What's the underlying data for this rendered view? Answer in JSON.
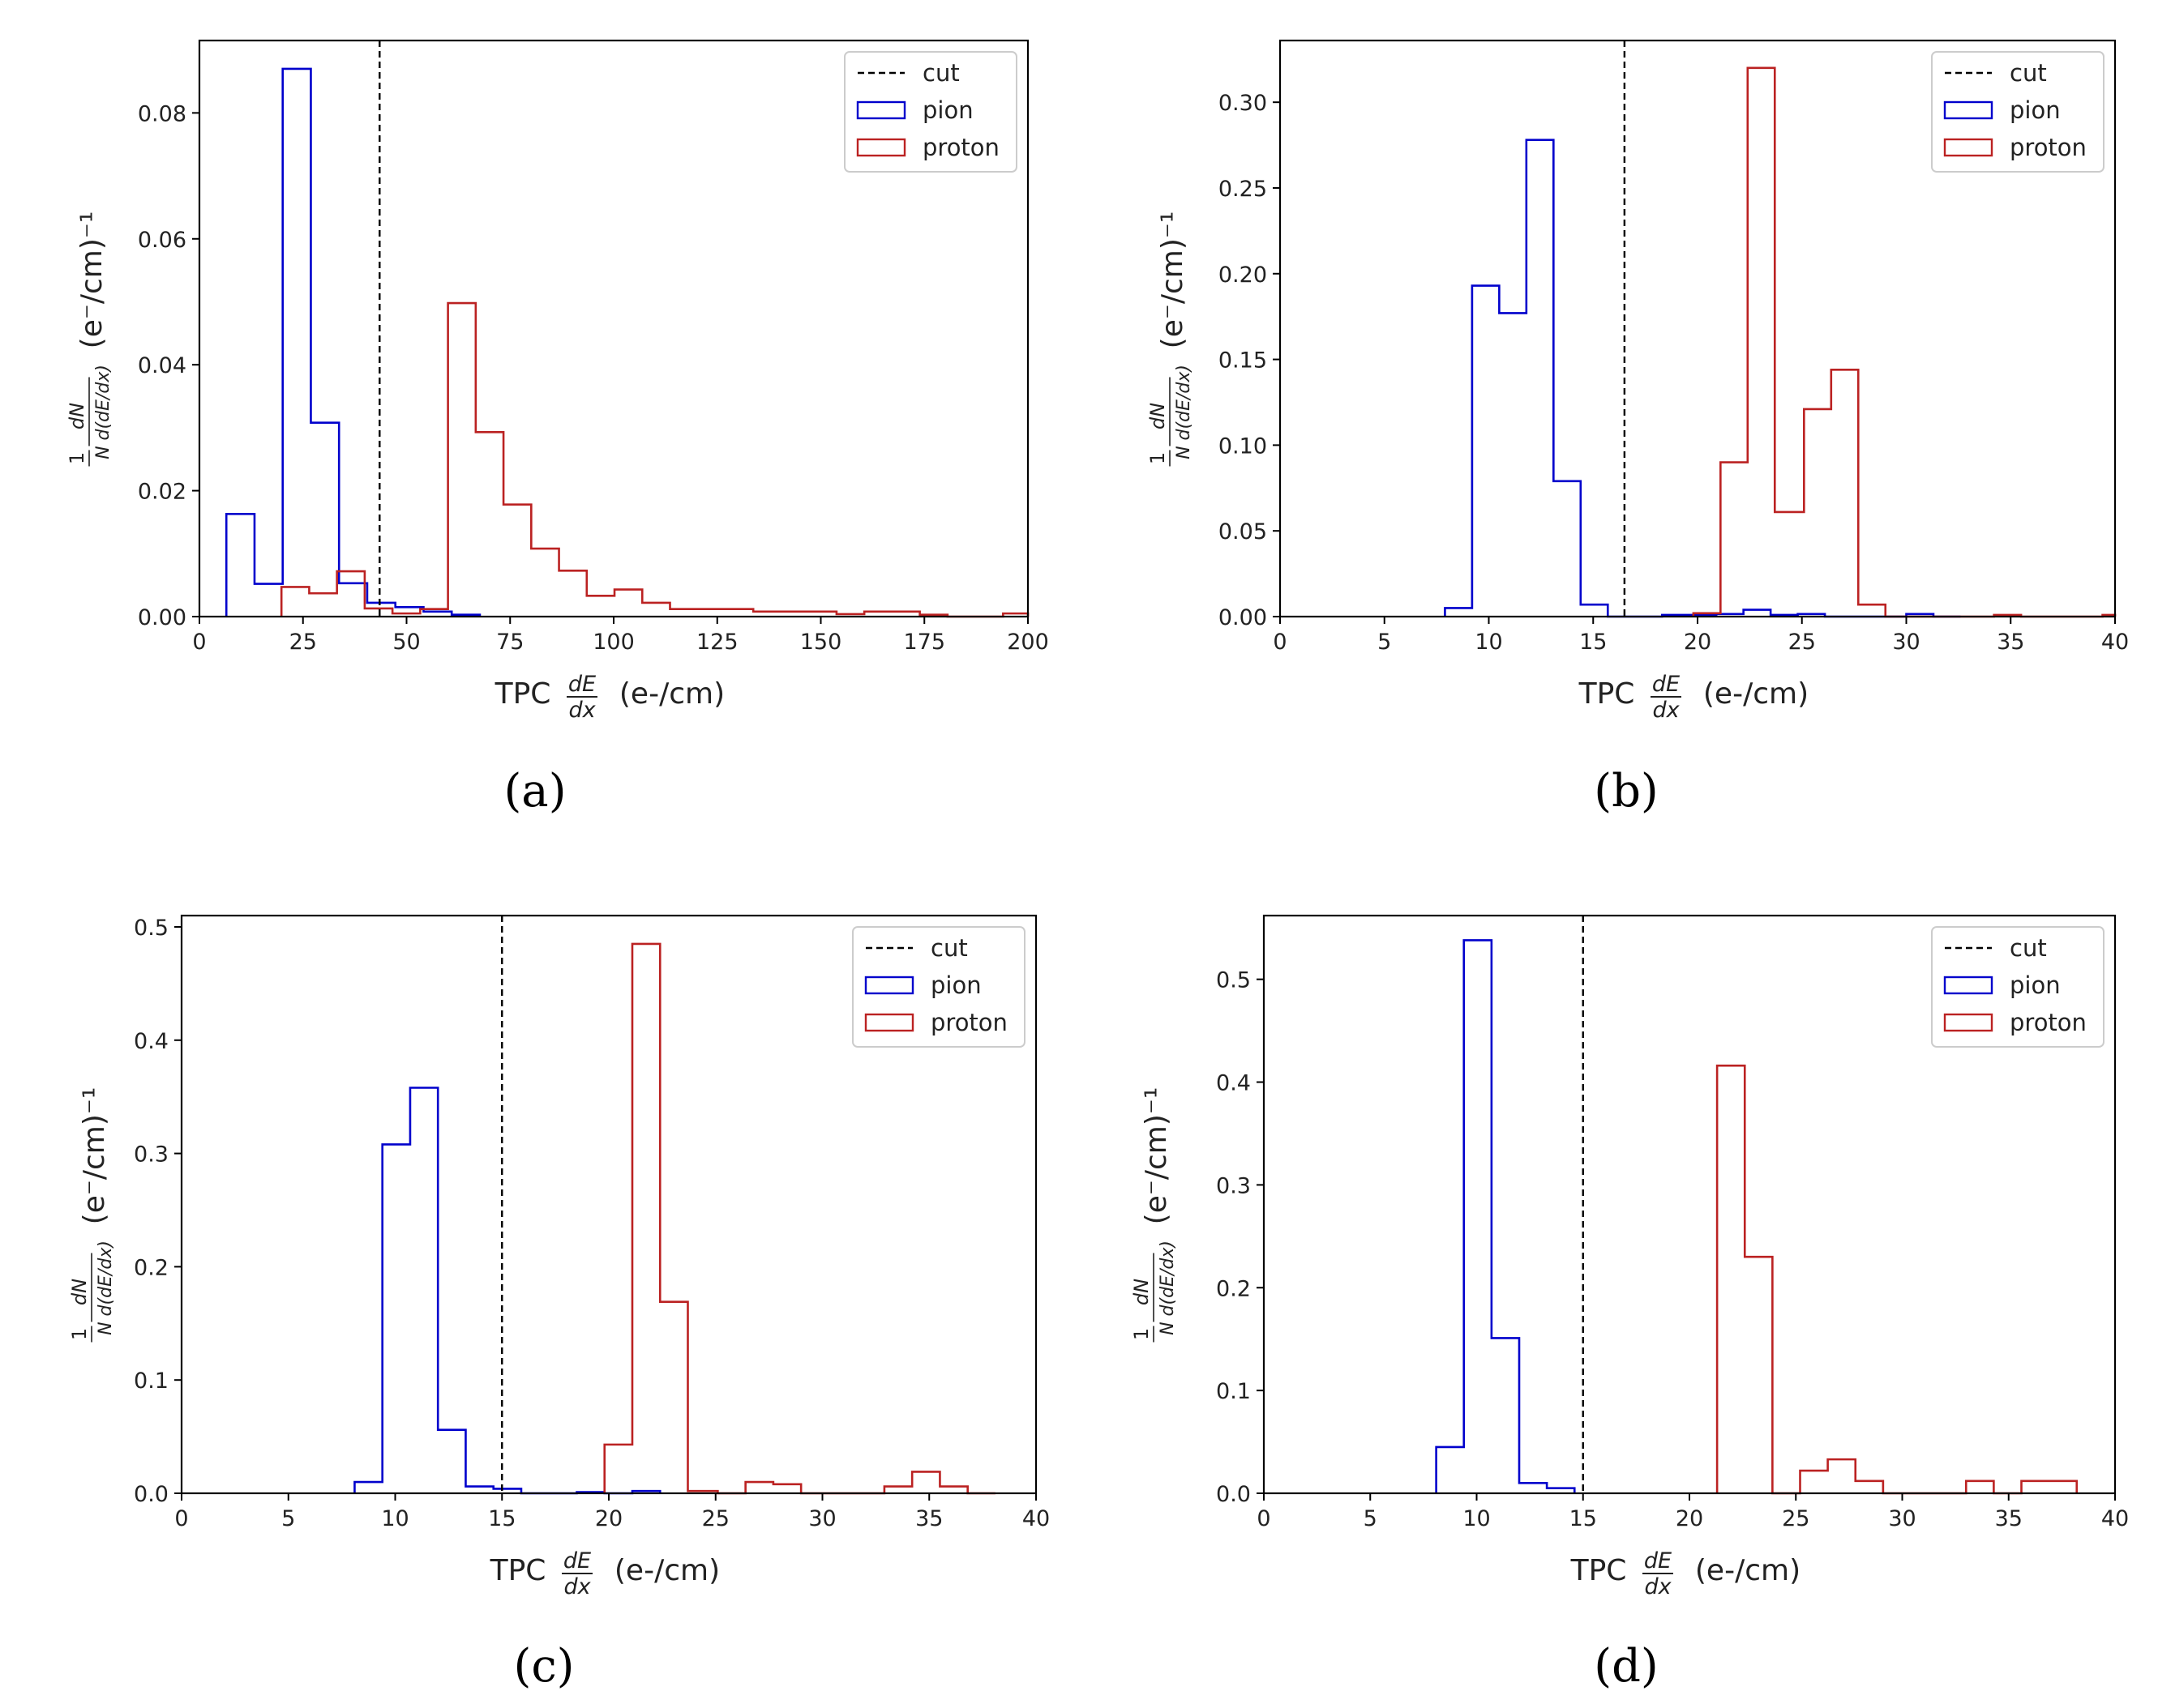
{
  "chart_data": [
    {
      "id": "a",
      "type": "histogram",
      "caption": "(a)",
      "xlabel": {
        "prefix": "TPC",
        "frac_num": "dE",
        "frac_den": "dx",
        "units": "(e-/cm)"
      },
      "ylabel": {
        "prefix": "1",
        "num": "dN",
        "den": "N d(dE/dx)",
        "units": "(e⁻/cm)⁻¹"
      },
      "xlim": [
        0,
        200
      ],
      "ylim": [
        0,
        0.0915
      ],
      "xticks": [
        0,
        25,
        50,
        75,
        100,
        125,
        150,
        175,
        200
      ],
      "xtick_labels": [
        "0",
        "25",
        "50",
        "75",
        "100",
        "125",
        "150",
        "175",
        "200"
      ],
      "yticks": [
        0.0,
        0.02,
        0.04,
        0.06,
        0.08
      ],
      "ytick_labels": [
        "0.00",
        "0.02",
        "0.04",
        "0.06",
        "0.08"
      ],
      "cut": 43.5,
      "legend": [
        "cut",
        "pion",
        "proton"
      ],
      "series": [
        {
          "name": "pion",
          "color": "#0000cc",
          "edges": [
            6.5,
            13.3,
            20.1,
            26.9,
            33.7,
            40.5,
            47.3,
            54.1,
            60.9,
            67.7
          ],
          "values": [
            0.0163,
            0.0052,
            0.087,
            0.0308,
            0.0053,
            0.0022,
            0.0015,
            0.0008,
            0.0003
          ]
        },
        {
          "name": "proton",
          "color": "#bb2222",
          "edges": [
            19.8,
            26.5,
            33.2,
            39.9,
            46.6,
            53.3,
            60.0,
            66.7,
            73.4,
            80.1,
            86.8,
            93.5,
            100.2,
            106.9,
            113.6,
            120.3,
            127.0,
            133.7,
            140.4,
            147.1,
            153.8,
            160.5,
            167.2,
            173.9,
            180.6,
            187.3,
            194.0,
            200.0
          ],
          "values": [
            0.0047,
            0.0037,
            0.0072,
            0.0013,
            0.0005,
            0.0012,
            0.0498,
            0.0293,
            0.0178,
            0.0108,
            0.0073,
            0.0033,
            0.0043,
            0.0022,
            0.0012,
            0.0012,
            0.0012,
            0.0008,
            0.0008,
            0.0008,
            0.0004,
            0.0008,
            0.0008,
            0.0003,
            0,
            0,
            0.0005
          ]
        }
      ]
    },
    {
      "id": "b",
      "type": "histogram",
      "caption": "(b)",
      "xlabel": {
        "prefix": "TPC",
        "frac_num": "dE",
        "frac_den": "dx",
        "units": "(e-/cm)"
      },
      "ylabel": {
        "prefix": "1",
        "num": "dN",
        "den": "N d(dE/dx)",
        "units": "(e⁻/cm)⁻¹"
      },
      "xlim": [
        0,
        40
      ],
      "ylim": [
        0,
        0.336
      ],
      "xticks": [
        0,
        5,
        10,
        15,
        20,
        25,
        30,
        35,
        40
      ],
      "xtick_labels": [
        "0",
        "5",
        "10",
        "15",
        "20",
        "25",
        "30",
        "35",
        "40"
      ],
      "yticks": [
        0.0,
        0.05,
        0.1,
        0.15,
        0.2,
        0.25,
        0.3
      ],
      "ytick_labels": [
        "0.00",
        "0.05",
        "0.10",
        "0.15",
        "0.20",
        "0.25",
        "0.30"
      ],
      "cut": 16.5,
      "legend": [
        "cut",
        "pion",
        "proton"
      ],
      "series": [
        {
          "name": "pion",
          "color": "#0000cc",
          "edges": [
            7.9,
            9.2,
            10.5,
            11.8,
            13.1,
            14.4,
            15.7,
            17.0,
            18.3,
            19.6,
            20.9,
            22.2,
            23.5,
            24.8,
            26.1,
            27.4,
            28.7,
            30.0,
            31.3,
            32.6
          ],
          "values": [
            0.005,
            0.193,
            0.177,
            0.278,
            0.079,
            0.007,
            0,
            0,
            0.001,
            0.001,
            0.0015,
            0.004,
            0.001,
            0.0015,
            0,
            0,
            0,
            0.0015,
            0
          ]
        },
        {
          "name": "proton",
          "color": "#bb2222",
          "edges": [
            19.8,
            21.1,
            22.4,
            23.7,
            25.1,
            26.4,
            27.7,
            29.0,
            30.3,
            31.6,
            32.9,
            34.2,
            35.5,
            36.8,
            38.1,
            39.4,
            40.0
          ],
          "values": [
            0.002,
            0.09,
            0.32,
            0.061,
            0.121,
            0.144,
            0.007,
            0,
            0,
            0,
            0,
            0.001,
            0,
            0,
            0,
            0.001
          ]
        }
      ]
    },
    {
      "id": "c",
      "type": "histogram",
      "caption": "(c)",
      "xlabel": {
        "prefix": "TPC",
        "frac_num": "dE",
        "frac_den": "dx",
        "units": "(e-/cm)"
      },
      "ylabel": {
        "prefix": "1",
        "num": "dN",
        "den": "N d(dE/dx)",
        "units": "(e⁻/cm)⁻¹"
      },
      "xlim": [
        0,
        40
      ],
      "ylim": [
        0,
        0.51
      ],
      "xticks": [
        0,
        5,
        10,
        15,
        20,
        25,
        30,
        35,
        40
      ],
      "xtick_labels": [
        "0",
        "5",
        "10",
        "15",
        "20",
        "25",
        "30",
        "35",
        "40"
      ],
      "yticks": [
        0.0,
        0.1,
        0.2,
        0.3,
        0.4,
        0.5
      ],
      "ytick_labels": [
        "0.0",
        "0.1",
        "0.2",
        "0.3",
        "0.4",
        "0.5"
      ],
      "cut": 15.0,
      "legend": [
        "cut",
        "pion",
        "proton"
      ],
      "series": [
        {
          "name": "pion",
          "color": "#0000cc",
          "edges": [
            8.1,
            9.4,
            10.7,
            12.0,
            13.3,
            14.6,
            15.9,
            17.2,
            18.5,
            19.8,
            21.1,
            22.4
          ],
          "values": [
            0.01,
            0.308,
            0.358,
            0.056,
            0.006,
            0.004,
            0,
            0,
            0.001,
            0,
            0.002
          ]
        },
        {
          "name": "proton",
          "color": "#bb2222",
          "edges": [
            19.8,
            21.1,
            22.4,
            23.7,
            25.1,
            26.4,
            27.7,
            29.0,
            30.3,
            31.6,
            32.9,
            34.2,
            35.5,
            36.8,
            38.1
          ],
          "values": [
            0.043,
            0.485,
            0.169,
            0.002,
            0,
            0.01,
            0.008,
            0,
            0,
            0,
            0.006,
            0.019,
            0.006,
            0
          ]
        }
      ]
    },
    {
      "id": "d",
      "type": "histogram",
      "caption": "(d)",
      "xlabel": {
        "prefix": "TPC",
        "frac_num": "dE",
        "frac_den": "dx",
        "units": "(e-/cm)"
      },
      "ylabel": {
        "prefix": "1",
        "num": "dN",
        "den": "N d(dE/dx)",
        "units": "(e⁻/cm)⁻¹"
      },
      "xlim": [
        0,
        40
      ],
      "ylim": [
        0,
        0.562
      ],
      "xticks": [
        0,
        5,
        10,
        15,
        20,
        25,
        30,
        35,
        40
      ],
      "xtick_labels": [
        "0",
        "5",
        "10",
        "15",
        "20",
        "25",
        "30",
        "35",
        "40"
      ],
      "yticks": [
        0.0,
        0.1,
        0.2,
        0.3,
        0.4,
        0.5
      ],
      "ytick_labels": [
        "0.0",
        "0.1",
        "0.2",
        "0.3",
        "0.4",
        "0.5"
      ],
      "cut": 15.0,
      "legend": [
        "cut",
        "pion",
        "proton"
      ],
      "series": [
        {
          "name": "pion",
          "color": "#0000cc",
          "edges": [
            8.1,
            9.4,
            10.7,
            12.0,
            13.3,
            14.6
          ],
          "values": [
            0.045,
            0.538,
            0.151,
            0.01,
            0.005
          ]
        },
        {
          "name": "proton",
          "color": "#bb2222",
          "edges": [
            21.3,
            22.6,
            23.9,
            25.2,
            26.5,
            27.8,
            29.1,
            30.4,
            31.7,
            33.0,
            34.3,
            35.6,
            36.9,
            38.2
          ],
          "values": [
            0.416,
            0.23,
            0,
            0.022,
            0.033,
            0.012,
            0,
            0,
            0,
            0.012,
            0,
            0.012,
            0.012
          ]
        }
      ]
    }
  ]
}
